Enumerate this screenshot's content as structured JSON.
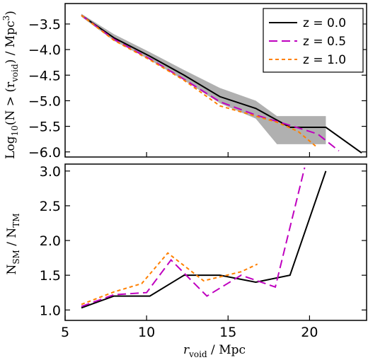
{
  "chart_data": [
    {
      "type": "line",
      "ylabel_pre": "Log",
      "ylabel_sub": "10",
      "ylabel_mid": "(N > (r",
      "ylabel_sub2": "void",
      "ylabel_post": ") / Mpc",
      "ylabel_sup": "3",
      "ylabel_end": ")",
      "xlim": [
        5,
        23.5
      ],
      "ylim": [
        -6.1,
        -3.1
      ],
      "yticks": [
        -3.5,
        -4.0,
        -4.5,
        -5.0,
        -5.5,
        -6.0
      ],
      "ytick_labels": [
        "−3.5",
        "−4.0",
        "−4.5",
        "−5.0",
        "−5.5",
        "−6.0"
      ],
      "legend_position": "top-right",
      "series": [
        {
          "name": "z = 0.0",
          "color": "#000000",
          "style": "solid",
          "x": [
            6.0,
            8.0,
            10.2,
            12.3,
            14.5,
            16.7,
            18.8,
            21.0,
            23.2
          ],
          "y": [
            -3.33,
            -3.77,
            -4.13,
            -4.5,
            -4.92,
            -5.15,
            -5.52,
            -5.52,
            -6.02
          ]
        },
        {
          "name": "z = 0.5",
          "color": "#bf00bf",
          "style": "dashed",
          "x": [
            6.0,
            8.0,
            10.2,
            12.3,
            14.5,
            16.7,
            18.8,
            20.5,
            21.8
          ],
          "y": [
            -3.33,
            -3.8,
            -4.18,
            -4.58,
            -5.02,
            -5.28,
            -5.48,
            -5.65,
            -5.98
          ]
        },
        {
          "name": "z = 1.0",
          "color": "#ff8000",
          "style": "dotted",
          "x": [
            6.0,
            8.0,
            10.2,
            12.3,
            14.5,
            16.7,
            18.0,
            19.3,
            20.5
          ],
          "y": [
            -3.33,
            -3.82,
            -4.2,
            -4.6,
            -5.1,
            -5.3,
            -5.42,
            -5.6,
            -5.92
          ]
        }
      ],
      "band": {
        "color": "#b0b0b0",
        "x": [
          6.0,
          8.0,
          10.2,
          12.3,
          14.5,
          16.7,
          18.0,
          19.2,
          21.0
        ],
        "upper": [
          -3.3,
          -3.7,
          -4.05,
          -4.4,
          -4.75,
          -5.0,
          -5.3,
          -5.3,
          -5.3
        ],
        "lower": [
          -3.36,
          -3.83,
          -4.2,
          -4.6,
          -5.05,
          -5.35,
          -5.85,
          -5.85,
          -5.85
        ]
      }
    },
    {
      "type": "line",
      "xlabel": "r",
      "xlabel_sub": "void",
      "xlabel_post": "  / Mpc",
      "ylabel_pre": "N",
      "ylabel_sub": "SM",
      "ylabel_mid": " / N",
      "ylabel_sub2": "TM",
      "xlim": [
        5,
        23.5
      ],
      "ylim": [
        0.85,
        3.1
      ],
      "xticks": [
        5,
        10,
        15,
        20
      ],
      "xtick_labels": [
        "5",
        "10",
        "15",
        "20"
      ],
      "yticks": [
        1.0,
        1.5,
        2.0,
        2.5,
        3.0
      ],
      "ytick_labels": [
        "1.0",
        "1.5",
        "2.0",
        "2.5",
        "3.0"
      ],
      "series": [
        {
          "name": "z = 0.0",
          "color": "#000000",
          "style": "solid",
          "x": [
            6.0,
            8.0,
            10.2,
            12.3,
            14.5,
            16.7,
            18.8,
            21.0
          ],
          "y": [
            1.03,
            1.2,
            1.2,
            1.5,
            1.5,
            1.4,
            1.5,
            3.0
          ]
        },
        {
          "name": "z = 0.5",
          "color": "#bf00bf",
          "style": "dashed",
          "x": [
            6.0,
            8.0,
            10.0,
            11.5,
            13.7,
            15.8,
            17.9,
            19.7
          ],
          "y": [
            1.05,
            1.22,
            1.25,
            1.72,
            1.2,
            1.5,
            1.33,
            3.05
          ]
        },
        {
          "name": "z = 1.0",
          "color": "#ff8000",
          "style": "dotted",
          "x": [
            6.0,
            8.0,
            9.7,
            11.3,
            13.5,
            15.8,
            16.8
          ],
          "y": [
            1.08,
            1.26,
            1.38,
            1.82,
            1.42,
            1.55,
            1.66
          ]
        }
      ]
    }
  ]
}
